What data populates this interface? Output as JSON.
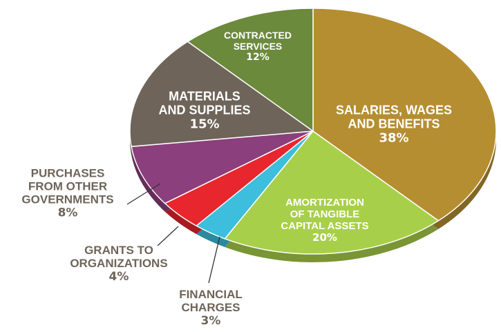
{
  "chart_data": {
    "type": "pie",
    "categories": [
      "SALARIES, WAGES AND BENEFITS",
      "AMORTIZATION OF TANGIBLE CAPITAL ASSETS",
      "FINANCIAL CHARGES",
      "GRANTS TO ORGANIZATIONS",
      "PURCHASES FROM OTHER GOVERNMENTS",
      "MATERIALS AND SUPPLIES",
      "CONTRACTED SERVICES"
    ],
    "values": [
      38,
      20,
      3,
      4,
      8,
      15,
      12
    ],
    "value_labels": [
      "38%",
      "20%",
      "3%",
      "4%",
      "8%",
      "15%",
      "12%"
    ],
    "colors": [
      "#b58e31",
      "#a8cf4a",
      "#3dbedc",
      "#e8262d",
      "#8b3f7c",
      "#6e6459",
      "#6b8a3c"
    ]
  }
}
